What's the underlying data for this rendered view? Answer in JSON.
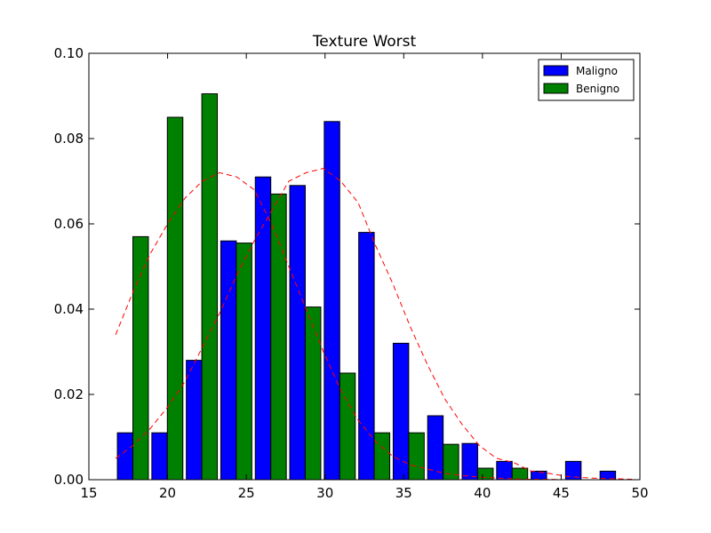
{
  "chart_data": {
    "type": "bar",
    "title": "Texture Worst",
    "xlabel": "",
    "ylabel": "",
    "xlim": [
      15,
      50
    ],
    "ylim": [
      0,
      0.1
    ],
    "x_ticks": [
      15,
      20,
      25,
      30,
      35,
      40,
      45,
      50
    ],
    "y_ticks": [
      0.0,
      0.02,
      0.04,
      0.06,
      0.08,
      0.1
    ],
    "x_tick_labels": [
      "15",
      "20",
      "25",
      "30",
      "35",
      "40",
      "45",
      "50"
    ],
    "y_tick_labels": [
      "0.00",
      "0.02",
      "0.04",
      "0.06",
      "0.08",
      "0.10"
    ],
    "grid": false,
    "legend_position": "top-right",
    "bin_edges": [
      16.7,
      18.89,
      21.08,
      23.27,
      25.46,
      27.65,
      29.84,
      32.03,
      34.22,
      36.41,
      38.6,
      40.79,
      42.98,
      45.17,
      47.36,
      49.55
    ],
    "series": [
      {
        "name": "Maligno",
        "color": "#0000ff",
        "values": [
          0.011,
          0.011,
          0.028,
          0.056,
          0.071,
          0.069,
          0.084,
          0.058,
          0.032,
          0.015,
          0.0085,
          0.0043,
          0.002,
          0.0043,
          0.002
        ]
      },
      {
        "name": "Benigno",
        "color": "#008000",
        "values": [
          0.057,
          0.085,
          0.0905,
          0.0555,
          0.067,
          0.0405,
          0.025,
          0.011,
          0.011,
          0.0083,
          0.0027,
          0.0027,
          0.0,
          0.0,
          0.0
        ]
      }
    ],
    "curves": [
      {
        "color": "#ff0000",
        "style": "dashed",
        "x": [
          16.7,
          17.8,
          18.9,
          20.0,
          21.1,
          22.2,
          23.3,
          24.4,
          25.5,
          26.6,
          27.7,
          28.8,
          29.9,
          31.0,
          32.1,
          33.2,
          34.3,
          35.4,
          36.5,
          37.6,
          38.7,
          39.8,
          40.9,
          42.0,
          43.1,
          44.2,
          45.3,
          46.4,
          47.5,
          48.6,
          49.5
        ],
        "y": [
          0.005,
          0.008,
          0.012,
          0.017,
          0.023,
          0.031,
          0.039,
          0.048,
          0.056,
          0.063,
          0.07,
          0.072,
          0.073,
          0.07,
          0.065,
          0.055,
          0.046,
          0.036,
          0.027,
          0.019,
          0.013,
          0.008,
          0.005,
          0.004,
          0.002,
          0.0015,
          0.0008,
          0.0005,
          0.0003,
          0.0002,
          0.0001
        ]
      },
      {
        "color": "#ff0000",
        "style": "dashed",
        "x": [
          16.7,
          17.8,
          18.9,
          20.0,
          21.1,
          22.2,
          23.3,
          24.4,
          25.5,
          26.6,
          27.7,
          28.8,
          29.9,
          31.0,
          32.1,
          33.2,
          34.3,
          35.4,
          36.5,
          37.6,
          38.7,
          39.8,
          40.9,
          42.0,
          43.1,
          44.2,
          45.3,
          46.4,
          47.5,
          48.6,
          49.5
        ],
        "y": [
          0.034,
          0.044,
          0.053,
          0.06,
          0.066,
          0.07,
          0.072,
          0.071,
          0.068,
          0.06,
          0.05,
          0.04,
          0.03,
          0.021,
          0.014,
          0.009,
          0.0055,
          0.0035,
          0.0025,
          0.0015,
          0.001,
          0.0006,
          0.0004,
          0.0002,
          0.0001,
          0.0001,
          0.0,
          0.0,
          0.0,
          0.0,
          0.0
        ]
      }
    ]
  }
}
